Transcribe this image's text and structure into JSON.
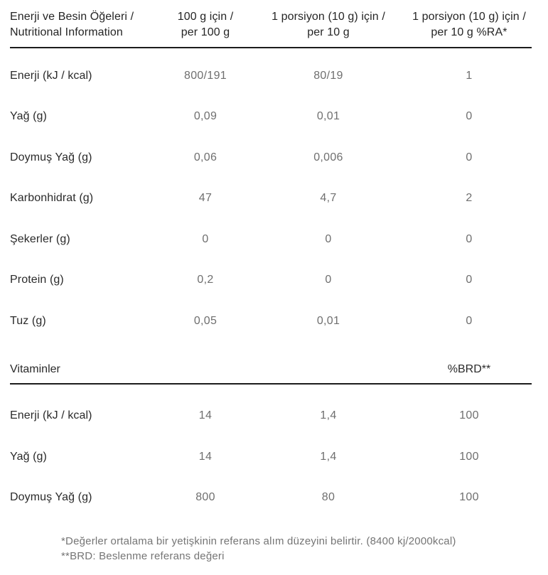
{
  "table": {
    "header": {
      "col_nutrients": {
        "line1": "Enerji ve Besin Öğeleri /",
        "line2": "Nutritional Information"
      },
      "col_per_100g": {
        "line1": "100 g için /",
        "line2": "per 100 g"
      },
      "col_per_10g": {
        "line1": "1 porsiyon (10 g) için /",
        "line2": "per 10 g"
      },
      "col_percent_ra": {
        "line1": "1 porsiyon (10 g) için /",
        "line2": "per 10 g %RA*"
      }
    },
    "rows": [
      {
        "label": "Enerji (kJ / kcal)",
        "per_100g": "800/191",
        "per_10g": "80/19",
        "percent_ra": "1"
      },
      {
        "label": "Yağ (g)",
        "per_100g": "0,09",
        "per_10g": "0,01",
        "percent_ra": "0"
      },
      {
        "label": "Doymuş Yağ (g)",
        "per_100g": "0,06",
        "per_10g": "0,006",
        "percent_ra": "0"
      },
      {
        "label": "Karbonhidrat (g)",
        "per_100g": "47",
        "per_10g": "4,7",
        "percent_ra": "2"
      },
      {
        "label": "Şekerler (g)",
        "per_100g": "0",
        "per_10g": "0",
        "percent_ra": "0"
      },
      {
        "label": "Protein (g)",
        "per_100g": "0,2",
        "per_10g": "0",
        "percent_ra": "0"
      },
      {
        "label": "Tuz (g)",
        "per_100g": "0,05",
        "per_10g": "0,01",
        "percent_ra": "0"
      }
    ],
    "vitamins_section": {
      "title": "Vitaminler",
      "brd_column_label": "%BRD**",
      "rows": [
        {
          "label": "Enerji (kJ / kcal)",
          "per_100g": "14",
          "per_10g": "1,4",
          "percent_brd": "100"
        },
        {
          "label": "Yağ (g)",
          "per_100g": "14",
          "per_10g": "1,4",
          "percent_brd": "100"
        },
        {
          "label": "Doymuş Yağ (g)",
          "per_100g": "800",
          "per_10g": "80",
          "percent_brd": "100"
        }
      ]
    },
    "footnotes": {
      "line1": "*Değerler ortalama bir yetişkinin referans alım düzeyini belirtir. (8400 kj/2000kcal)",
      "line2": "**BRD: Beslenme referans değeri"
    },
    "colors": {
      "label_text": "#2a2a2a",
      "value_text": "#6f6f6f",
      "rule": "#1c1c1c",
      "footnote_text": "#757575"
    }
  }
}
